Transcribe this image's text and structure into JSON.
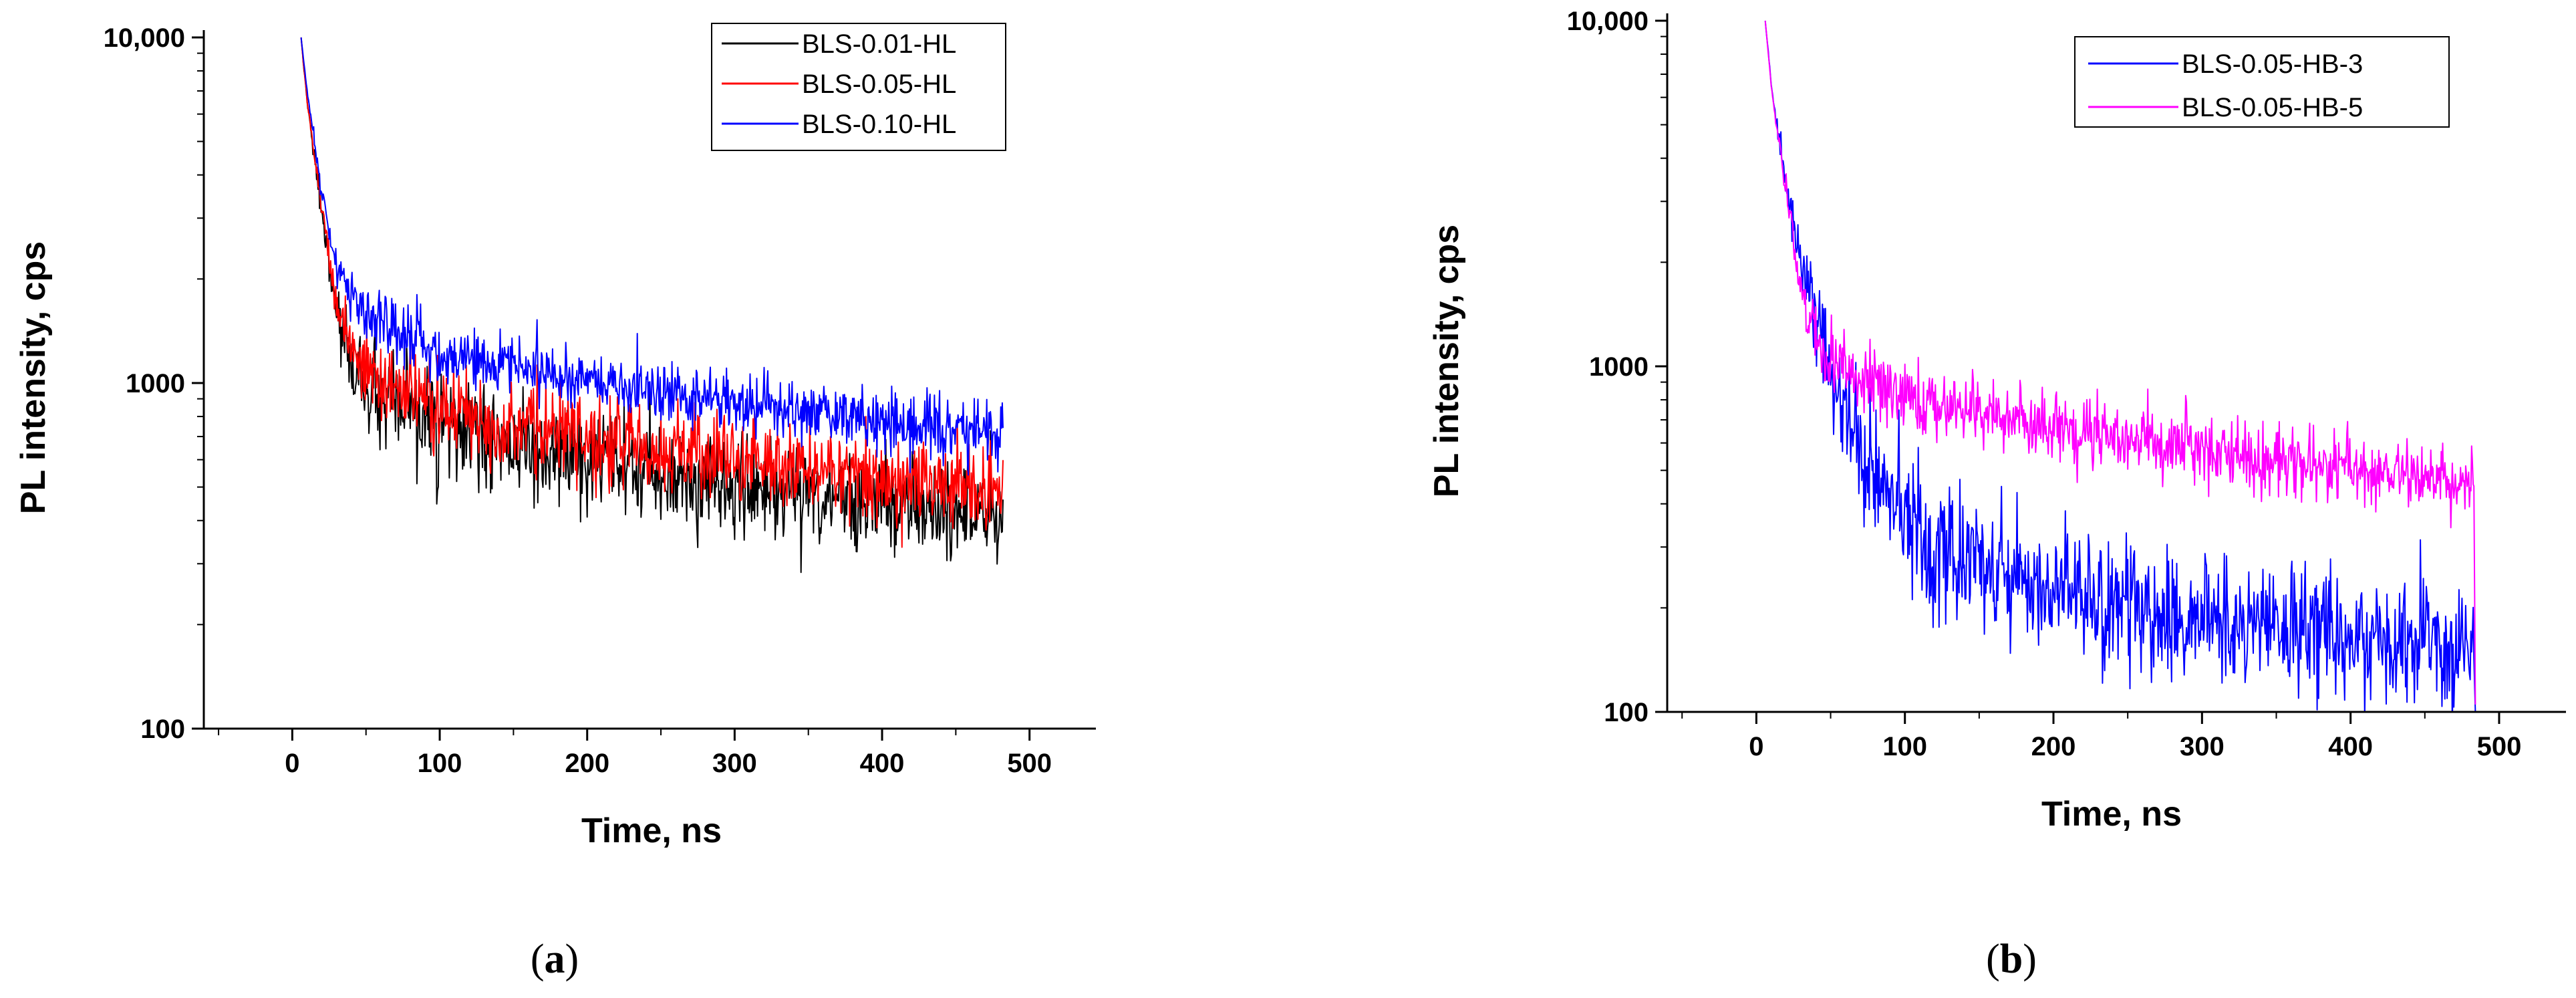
{
  "chart_data": [
    {
      "type": "line",
      "panel_label": "(a)",
      "panel_letter": "a",
      "xlabel": "Time, ns",
      "ylabel": "PL intensity, cps",
      "y_scale": "log",
      "xlim": [
        -60,
        545
      ],
      "ylim": [
        100,
        10500
      ],
      "x_ticks": [
        0,
        100,
        200,
        300,
        400,
        500
      ],
      "x_tick_labels": [
        "0",
        "100",
        "200",
        "300",
        "400",
        "500"
      ],
      "y_ticks": [
        100,
        1000,
        10000
      ],
      "y_tick_labels": [
        "100",
        "1000",
        "10,000"
      ],
      "legend_position": "top-right",
      "series": [
        {
          "name": "BLS-0.01-HL",
          "color": "#000000",
          "noise": 0.07,
          "x": [
            6,
            10,
            15,
            20,
            25,
            30,
            35,
            40,
            50,
            60,
            75,
            100,
            150,
            200,
            250,
            300,
            350,
            400,
            450,
            482
          ],
          "y": [
            10000,
            6500,
            4500,
            3100,
            2200,
            1600,
            1300,
            1150,
            960,
            880,
            820,
            750,
            650,
            590,
            540,
            505,
            480,
            450,
            425,
            410
          ]
        },
        {
          "name": "BLS-0.05-HL",
          "color": "#ff0000",
          "noise": 0.06,
          "x": [
            6,
            10,
            15,
            20,
            25,
            30,
            35,
            40,
            50,
            60,
            75,
            100,
            150,
            200,
            250,
            300,
            350,
            400,
            450,
            482
          ],
          "y": [
            10000,
            6600,
            4600,
            3200,
            2350,
            1750,
            1450,
            1290,
            1100,
            1000,
            930,
            850,
            750,
            690,
            640,
            600,
            565,
            535,
            505,
            490
          ]
        },
        {
          "name": "BLS-0.10-HL",
          "color": "#0000ff",
          "noise": 0.045,
          "x": [
            6,
            10,
            15,
            20,
            25,
            30,
            35,
            40,
            50,
            60,
            75,
            100,
            150,
            200,
            250,
            300,
            350,
            400,
            450,
            482
          ],
          "y": [
            10000,
            7000,
            5000,
            3600,
            2700,
            2200,
            1950,
            1800,
            1600,
            1480,
            1380,
            1250,
            1110,
            1010,
            940,
            880,
            820,
            775,
            735,
            710
          ]
        }
      ]
    },
    {
      "type": "line",
      "panel_label": "(b)",
      "panel_letter": "b",
      "xlabel": "Time, ns",
      "ylabel": "PL intensity, cps",
      "y_scale": "log",
      "xlim": [
        -60,
        545
      ],
      "ylim": [
        100,
        10500
      ],
      "x_ticks": [
        0,
        100,
        200,
        300,
        400,
        500
      ],
      "x_tick_labels": [
        "0",
        "100",
        "200",
        "300",
        "400",
        "500"
      ],
      "y_ticks": [
        100,
        1000,
        10000
      ],
      "y_tick_labels": [
        "100",
        "1000",
        "10,000"
      ],
      "legend_position": "top-right",
      "series": [
        {
          "name": "BLS-0.05-HB-3",
          "color": "#0000ff",
          "noise": 0.09,
          "x": [
            6,
            10,
            15,
            20,
            25,
            30,
            40,
            50,
            60,
            70,
            80,
            90,
            100,
            125,
            150,
            200,
            250,
            300,
            350,
            400,
            450,
            483,
            484
          ],
          "y": [
            10000,
            6500,
            4600,
            3400,
            2600,
            2000,
            1400,
            1000,
            760,
            590,
            480,
            400,
            350,
            290,
            260,
            225,
            200,
            185,
            175,
            165,
            158,
            150,
            100
          ]
        },
        {
          "name": "BLS-0.05-HB-5",
          "color": "#ff00ff",
          "noise": 0.05,
          "x": [
            6,
            10,
            15,
            20,
            25,
            30,
            40,
            50,
            60,
            75,
            100,
            150,
            200,
            250,
            300,
            350,
            400,
            450,
            483,
            484
          ],
          "y": [
            10000,
            6500,
            4500,
            3200,
            2300,
            1650,
            1280,
            1100,
            980,
            900,
            820,
            730,
            670,
            620,
            580,
            540,
            510,
            480,
            460,
            105
          ]
        }
      ]
    }
  ]
}
